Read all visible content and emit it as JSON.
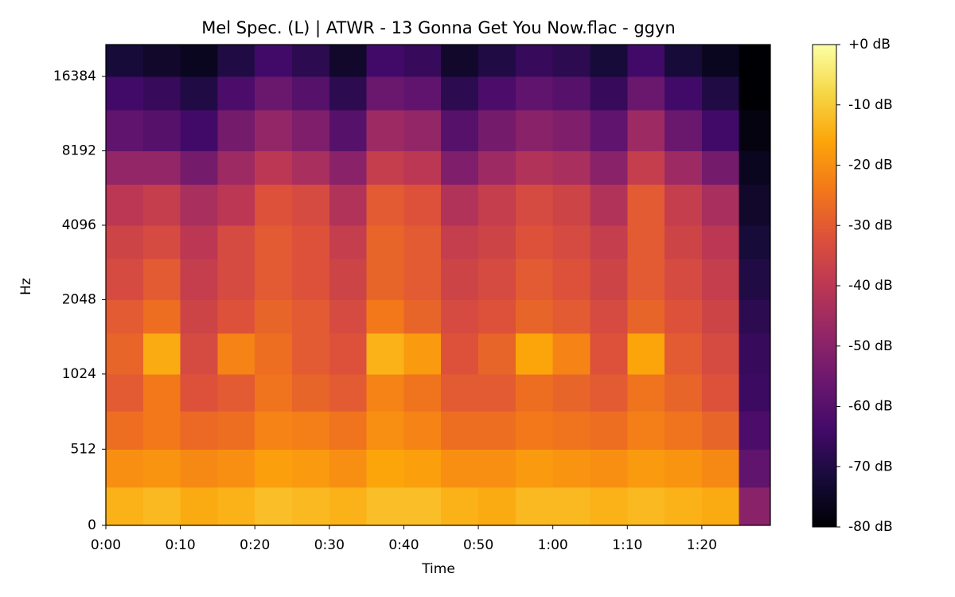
{
  "chart_data": {
    "type": "heatmap",
    "title": "Mel Spec. (L) | ATWR - 13 Gonna Get You Now.flac - ggyn",
    "xlabel": "Time",
    "ylabel": "Hz",
    "colormap": "inferno",
    "yscale": "symlog",
    "ybase": 2,
    "ylinthresh": 1000,
    "xlim": [
      0,
      89.2
    ],
    "ylim": [
      0,
      22050
    ],
    "zlim": [
      -80,
      0
    ],
    "xticks": [
      {
        "value": 0,
        "label": "0:00"
      },
      {
        "value": 10,
        "label": "0:10"
      },
      {
        "value": 20,
        "label": "0:20"
      },
      {
        "value": 30,
        "label": "0:30"
      },
      {
        "value": 40,
        "label": "0:40"
      },
      {
        "value": 50,
        "label": "0:50"
      },
      {
        "value": 60,
        "label": "1:00"
      },
      {
        "value": 70,
        "label": "1:10"
      },
      {
        "value": 80,
        "label": "1:20"
      }
    ],
    "yticks": [
      0,
      512,
      1024,
      2048,
      4096,
      8192,
      16384
    ],
    "zticks": [
      {
        "value": 0,
        "label": "+0 dB"
      },
      {
        "value": -10,
        "label": "-10 dB"
      },
      {
        "value": -20,
        "label": "-20 dB"
      },
      {
        "value": -30,
        "label": "-30 dB"
      },
      {
        "value": -40,
        "label": "-40 dB"
      },
      {
        "value": -50,
        "label": "-50 dB"
      },
      {
        "value": -60,
        "label": "-60 dB"
      },
      {
        "value": -70,
        "label": "-70 dB"
      },
      {
        "value": -80,
        "label": "-80 dB"
      }
    ],
    "x": [
      0,
      5,
      10,
      15,
      20,
      25,
      30,
      35,
      40,
      45,
      50,
      55,
      60,
      65,
      70,
      75,
      80,
      85,
      89.2
    ],
    "y": [
      0,
      256,
      512,
      768,
      1024,
      1500,
      2048,
      3000,
      4096,
      6000,
      8192,
      12000,
      16384,
      22050
    ],
    "z": [
      [
        -14,
        -13,
        -15,
        -14,
        -12,
        -13,
        -14,
        -12,
        -12,
        -14,
        -15,
        -13,
        -13,
        -14,
        -13,
        -14,
        -15,
        -50
      ],
      [
        -20,
        -19,
        -21,
        -20,
        -17,
        -18,
        -20,
        -16,
        -17,
        -20,
        -20,
        -18,
        -19,
        -20,
        -18,
        -19,
        -21,
        -58
      ],
      [
        -26,
        -24,
        -27,
        -26,
        -22,
        -23,
        -25,
        -20,
        -22,
        -26,
        -26,
        -24,
        -25,
        -26,
        -23,
        -25,
        -28,
        -62
      ],
      [
        -30,
        -24,
        -32,
        -30,
        -25,
        -28,
        -30,
        -22,
        -25,
        -30,
        -30,
        -26,
        -28,
        -30,
        -25,
        -28,
        -32,
        -65
      ],
      [
        -28,
        -15,
        -34,
        -22,
        -26,
        -30,
        -32,
        -14,
        -18,
        -32,
        -28,
        -16,
        -22,
        -32,
        -16,
        -30,
        -34,
        -66
      ],
      [
        -30,
        -26,
        -36,
        -32,
        -28,
        -30,
        -34,
        -24,
        -28,
        -34,
        -32,
        -28,
        -30,
        -34,
        -28,
        -32,
        -36,
        -68
      ],
      [
        -34,
        -30,
        -38,
        -34,
        -30,
        -32,
        -36,
        -28,
        -30,
        -36,
        -34,
        -30,
        -32,
        -36,
        -30,
        -34,
        -38,
        -70
      ],
      [
        -36,
        -34,
        -40,
        -34,
        -30,
        -32,
        -38,
        -28,
        -30,
        -38,
        -36,
        -32,
        -34,
        -38,
        -30,
        -36,
        -40,
        -72
      ],
      [
        -40,
        -38,
        -44,
        -40,
        -32,
        -34,
        -42,
        -30,
        -32,
        -42,
        -38,
        -34,
        -36,
        -42,
        -30,
        -38,
        -44,
        -74
      ],
      [
        -48,
        -48,
        -54,
        -46,
        -40,
        -44,
        -50,
        -38,
        -40,
        -52,
        -46,
        -42,
        -44,
        -50,
        -38,
        -46,
        -54,
        -76
      ],
      [
        -58,
        -60,
        -64,
        -54,
        -48,
        -52,
        -60,
        -46,
        -48,
        -60,
        -54,
        -50,
        -52,
        -58,
        -46,
        -56,
        -64,
        -78
      ],
      [
        -64,
        -66,
        -70,
        -62,
        -56,
        -60,
        -68,
        -56,
        -58,
        -68,
        -62,
        -58,
        -60,
        -66,
        -56,
        -64,
        -70,
        -80
      ],
      [
        -72,
        -74,
        -76,
        -70,
        -64,
        -68,
        -74,
        -64,
        -66,
        -74,
        -70,
        -66,
        -68,
        -72,
        -64,
        -72,
        -76,
        -80
      ]
    ]
  }
}
